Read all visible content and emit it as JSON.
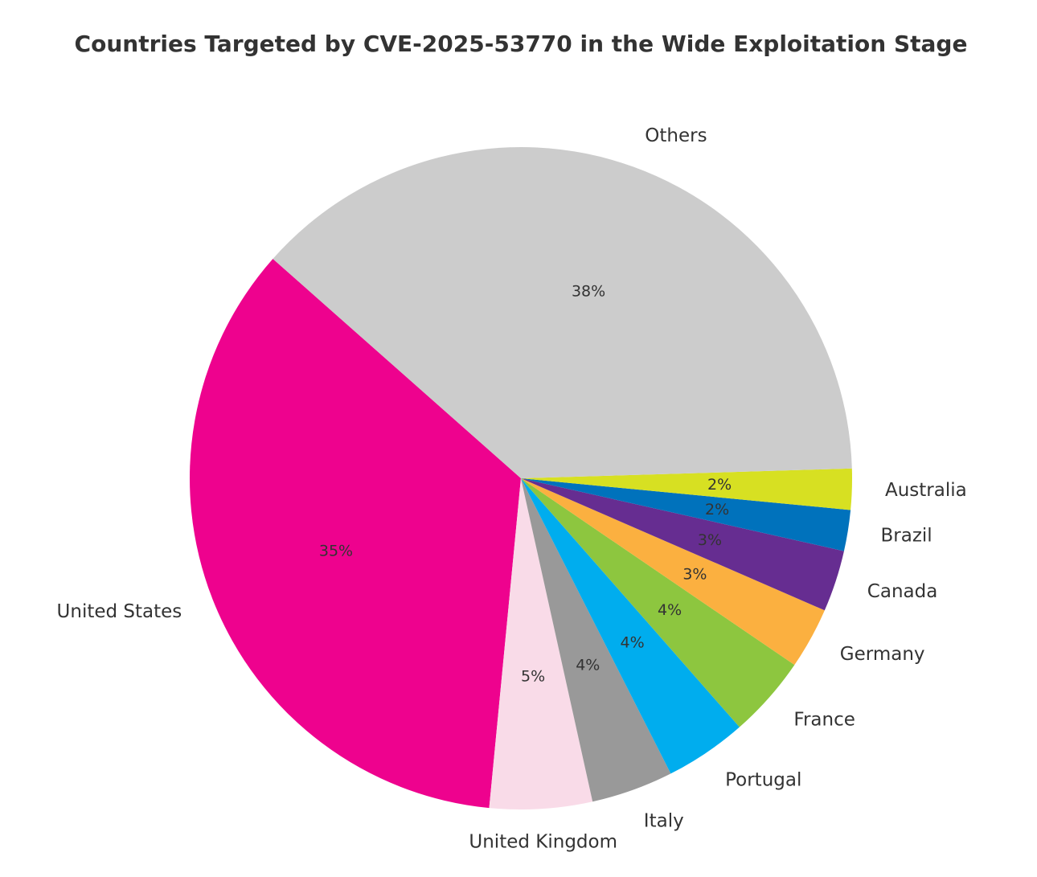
{
  "chart_data": {
    "type": "pie",
    "title": "Countries Targeted by CVE-2025-53770 in the Wide Exploitation Stage",
    "slices": [
      {
        "label": "United States",
        "value": 35,
        "pct_label": "35%",
        "color": "#EE028E"
      },
      {
        "label": "United Kingdom",
        "value": 5,
        "pct_label": "5%",
        "color": "#F9DBE8"
      },
      {
        "label": "Italy",
        "value": 4,
        "pct_label": "4%",
        "color": "#999999"
      },
      {
        "label": "Portugal",
        "value": 4,
        "pct_label": "4%",
        "color": "#00ADEE"
      },
      {
        "label": "France",
        "value": 4,
        "pct_label": "4%",
        "color": "#8DC63F"
      },
      {
        "label": "Germany",
        "value": 3,
        "pct_label": "3%",
        "color": "#FBB040"
      },
      {
        "label": "Canada",
        "value": 3,
        "pct_label": "3%",
        "color": "#662D91"
      },
      {
        "label": "Brazil",
        "value": 2,
        "pct_label": "2%",
        "color": "#0072BC"
      },
      {
        "label": "Australia",
        "value": 2,
        "pct_label": "2%",
        "color": "#D7E022"
      },
      {
        "label": "Others",
        "value": 38,
        "pct_label": "38%",
        "color": "#CCCCCC"
      }
    ]
  }
}
